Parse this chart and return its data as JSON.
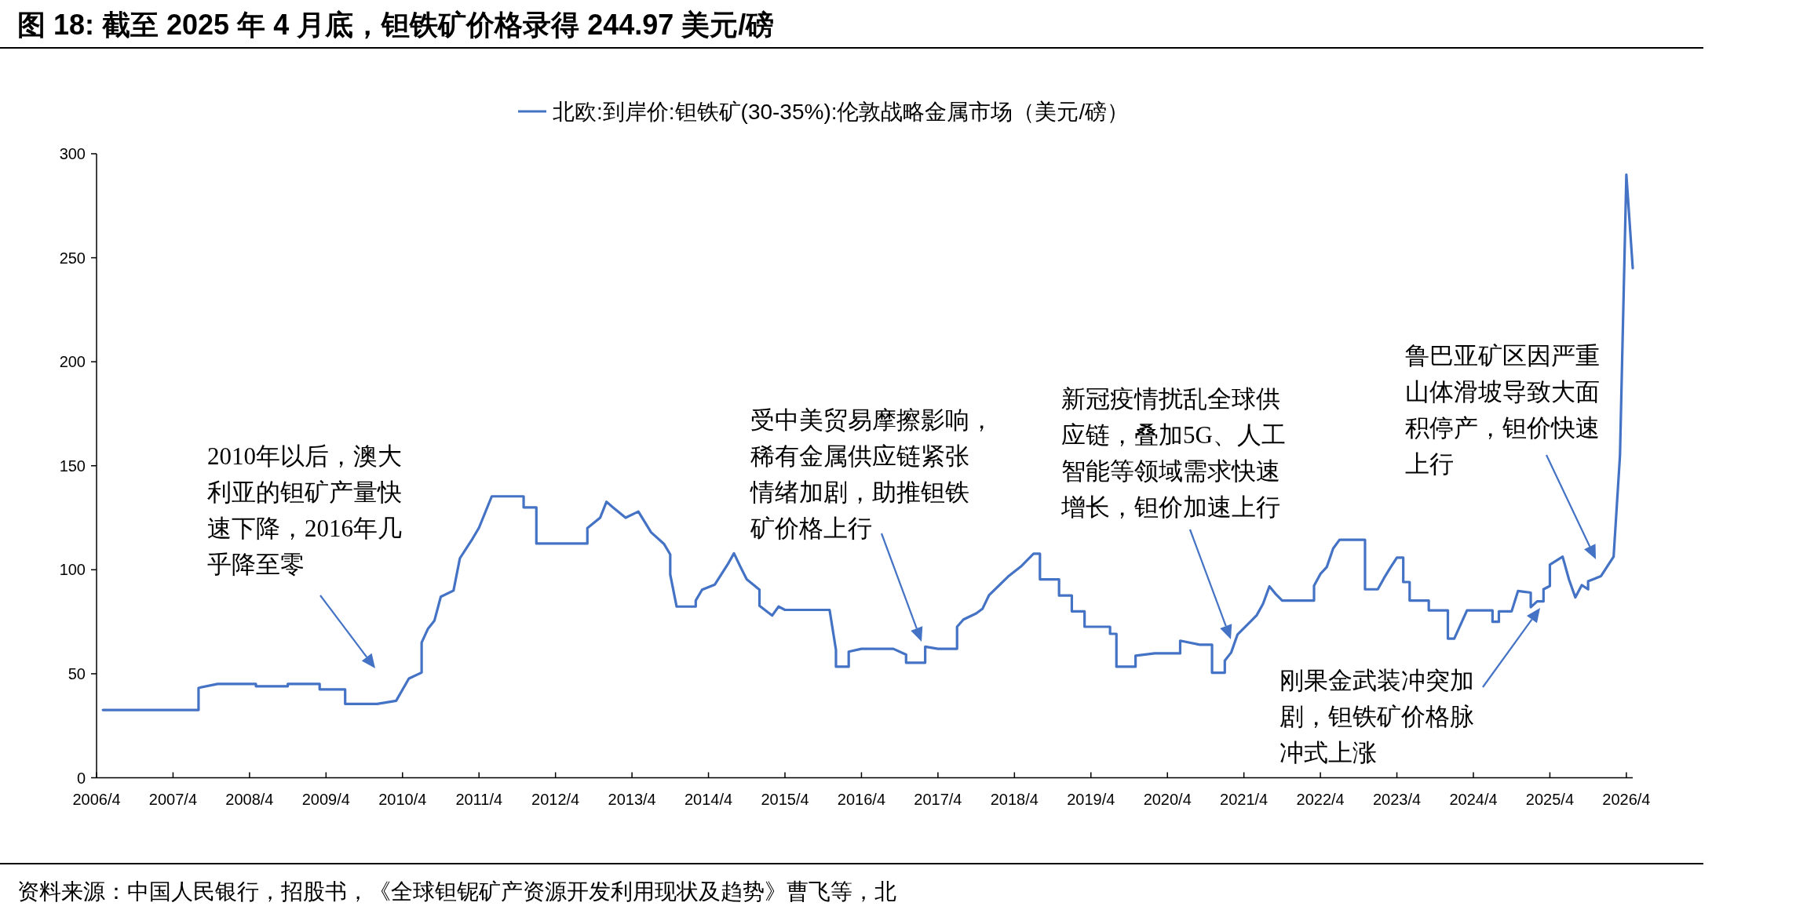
{
  "chart_data": {
    "type": "line",
    "title": "图 18: 截至 2025 年 4 月底，钽铁矿价格录得 244.97 美元/磅",
    "x": [
      "2006-05",
      "2007-08",
      "2007-08",
      "2007-08",
      "2007-11",
      "2008-05",
      "2008-05",
      "2008-10",
      "2008-10",
      "2009-03",
      "2009-03",
      "2009-07",
      "2009-07",
      "2009-12",
      "2010-03",
      "2010-05",
      "2010-07",
      "2010-07",
      "2010-08",
      "2010-09",
      "2010-10",
      "2010-12",
      "2011-01",
      "2011-03",
      "2011-04",
      "2011-06",
      "2011-11",
      "2011-11",
      "2012-01",
      "2012-01",
      "2012-09",
      "2012-09",
      "2012-11",
      "2012-12",
      "2013-01",
      "2013-03",
      "2013-05",
      "2013-07",
      "2013-09",
      "2013-10",
      "2013-10",
      "2013-11",
      "2014-02",
      "2014-02",
      "2014-03",
      "2014-05",
      "2014-06",
      "2014-07",
      "2014-08",
      "2014-09",
      "2014-10",
      "2014-12",
      "2014-12",
      "2015-02",
      "2015-03",
      "2015-04",
      "2015-11",
      "2015-12",
      "2015-12",
      "2016-02",
      "2016-02",
      "2016-04",
      "2016-09",
      "2016-11",
      "2016-11",
      "2017-02",
      "2017-02",
      "2017-04",
      "2017-07",
      "2017-07",
      "2017-08",
      "2017-10",
      "2017-11",
      "2017-12",
      "2018-03",
      "2018-05",
      "2018-07",
      "2018-08",
      "2018-08",
      "2018-11",
      "2018-11",
      "2019-01",
      "2019-01",
      "2019-03",
      "2019-03",
      "2019-07",
      "2019-07",
      "2019-08",
      "2019-08",
      "2019-11",
      "2019-11",
      "2020-02",
      "2020-06",
      "2020-06",
      "2020-09",
      "2020-11",
      "2020-11",
      "2021-01",
      "2021-01",
      "2021-02",
      "2021-03",
      "2021-05",
      "2021-06",
      "2021-07",
      "2021-08",
      "2021-09",
      "2021-10",
      "2022-03",
      "2022-03",
      "2022-04",
      "2022-05",
      "2022-06",
      "2022-07",
      "2022-11",
      "2022-11",
      "2023-01",
      "2023-02",
      "2023-03",
      "2023-04",
      "2023-05",
      "2023-05",
      "2023-06",
      "2023-06",
      "2023-09",
      "2023-09",
      "2023-12",
      "2023-12",
      "2024-01",
      "2024-03",
      "2024-07",
      "2024-07",
      "2024-08",
      "2024-08",
      "2024-10",
      "2024-11",
      "2025-01",
      "2025-01",
      "2025-02",
      "2025-03",
      "2025-03",
      "2025-04",
      "2025-04",
      "2025-06",
      "2025-07",
      "2025-08",
      "2025-09",
      "2025-10",
      "2025-10",
      "2025-12",
      "2026-02",
      "2026-03",
      "2026-04",
      "2026-05"
    ],
    "series": [
      {
        "name": "北欧:到岸价:钽铁矿(30-35%):伦敦战略金属市场（美元/磅）",
        "color": "#4472c4",
        "values": [
          32.6,
          32.6,
          41.3,
          43.2,
          45.1,
          45.1,
          44,
          44,
          45.1,
          45.1,
          42.5,
          42.5,
          35.5,
          35.5,
          37,
          47.7,
          50.6,
          65,
          71.7,
          75.5,
          87,
          90,
          105.5,
          115,
          120.2,
          135.3,
          135.3,
          130,
          130,
          112.6,
          112.6,
          120,
          125,
          132.7,
          130,
          125,
          128,
          118,
          112.5,
          107.4,
          97.7,
          82.3,
          82.3,
          85.2,
          90.4,
          92.9,
          97.7,
          102.5,
          107.9,
          101.5,
          95.4,
          90.4,
          82.7,
          78,
          82.3,
          80.7,
          80.7,
          61.5,
          53.4,
          53.4,
          60.6,
          62,
          62,
          59.2,
          55.3,
          55.3,
          63,
          62,
          62,
          72.6,
          76.1,
          79,
          81.3,
          87.7,
          96.7,
          101.5,
          107.7,
          107.7,
          95.4,
          95.4,
          87.6,
          87.6,
          80,
          80,
          72.6,
          72.6,
          69.2,
          69.2,
          53.4,
          53.4,
          58.7,
          59.8,
          59.8,
          65.9,
          64,
          64,
          50.5,
          50.5,
          56.3,
          60.2,
          68.9,
          75,
          78.1,
          83.6,
          92,
          88.3,
          85.2,
          85.2,
          92.3,
          98,
          101.3,
          110.2,
          114.4,
          114.4,
          90.6,
          90.6,
          96.1,
          101.1,
          105.8,
          105.8,
          94.1,
          94.1,
          85.2,
          85.2,
          80.5,
          80.5,
          66.9,
          66.9,
          80.5,
          80.5,
          75,
          75,
          80,
          80,
          89.8,
          89,
          82,
          84.8,
          84.8,
          90.6,
          92.2,
          102.4,
          106.3,
          95.3,
          86.7,
          92.6,
          90.6,
          94.5,
          96.9,
          106.3,
          155,
          290,
          245
        ]
      }
    ],
    "xlim": [
      "2006-04",
      "2026-05"
    ],
    "xticks": [
      {
        "value": "2006-04",
        "label": "2006/4"
      },
      {
        "value": "2007-04",
        "label": "2007/4"
      },
      {
        "value": "2008-04",
        "label": "2008/4"
      },
      {
        "value": "2009-04",
        "label": "2009/4"
      },
      {
        "value": "2010-04",
        "label": "2010/4"
      },
      {
        "value": "2011-04",
        "label": "2011/4"
      },
      {
        "value": "2012-04",
        "label": "2012/4"
      },
      {
        "value": "2013-04",
        "label": "2013/4"
      },
      {
        "value": "2014-04",
        "label": "2014/4"
      },
      {
        "value": "2015-04",
        "label": "2015/4"
      },
      {
        "value": "2016-04",
        "label": "2016/4"
      },
      {
        "value": "2017-04",
        "label": "2017/4"
      },
      {
        "value": "2018-04",
        "label": "2018/4"
      },
      {
        "value": "2019-04",
        "label": "2019/4"
      },
      {
        "value": "2020-04",
        "label": "2020/4"
      },
      {
        "value": "2021-04",
        "label": "2021/4"
      },
      {
        "value": "2022-04",
        "label": "2022/4"
      },
      {
        "value": "2023-04",
        "label": "2023/4"
      },
      {
        "value": "2024-04",
        "label": "2024/4"
      },
      {
        "value": "2025-04",
        "label": "2025/4"
      },
      {
        "value": "2026-04",
        "label": "2026/4"
      }
    ],
    "ylim": [
      0,
      300
    ],
    "yticks": [
      0,
      50,
      100,
      150,
      200,
      250,
      300
    ],
    "grid": false,
    "legend": "top",
    "marker": "none",
    "line_style": "solid",
    "annotations": [
      "2010年以后，澳大利亚的钽矿产量快速下降，2016年几乎降至零",
      "受中美贸易摩擦影响，稀有金属供应链紧张情绪加剧，助推钽铁矿价格上行",
      "新冠疫情扰乱全球供应链，叠加5G、人工智能等领域需求快速增长，钽价加速上行",
      "鲁巴亚矿区因严重山体滑坡导致大面积停产，钽价快速上行",
      "刚果金武装冲突加剧，钽铁矿价格脉冲式上涨",
      "资料来源：中国人民银行，招股书，《全球钽铌矿产资源开发利用现状及趋势》曹飞等，北"
    ]
  }
}
